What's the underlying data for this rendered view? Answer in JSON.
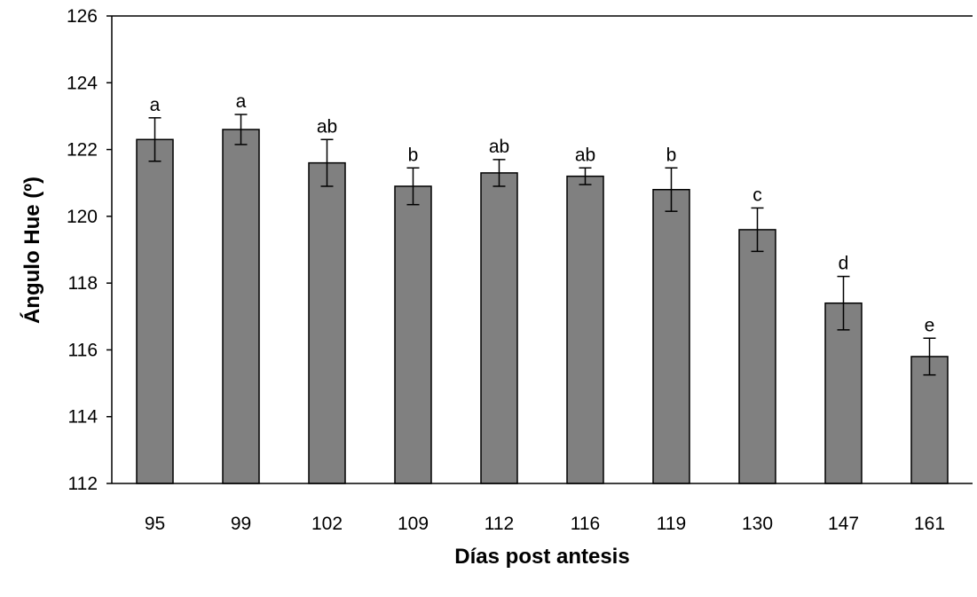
{
  "chart_data": {
    "type": "bar",
    "title": "",
    "xlabel": "Días post antesis",
    "ylabel": "Ángulo Hue (º)",
    "ylim": [
      112,
      126
    ],
    "yticks": [
      112,
      114,
      116,
      118,
      120,
      122,
      124,
      126
    ],
    "grid": false,
    "legend": "none",
    "bar_color": "#808080",
    "categories": [
      "95",
      "99",
      "102",
      "109",
      "112",
      "116",
      "119",
      "130",
      "147",
      "161"
    ],
    "values": [
      122.3,
      122.6,
      121.6,
      120.9,
      121.3,
      121.2,
      120.8,
      119.6,
      117.4,
      115.8
    ],
    "errors": [
      0.65,
      0.45,
      0.7,
      0.55,
      0.4,
      0.25,
      0.65,
      0.65,
      0.8,
      0.55
    ],
    "significance_letters": [
      "a",
      "a",
      "ab",
      "b",
      "ab",
      "ab",
      "b",
      "c",
      "d",
      "e"
    ]
  }
}
